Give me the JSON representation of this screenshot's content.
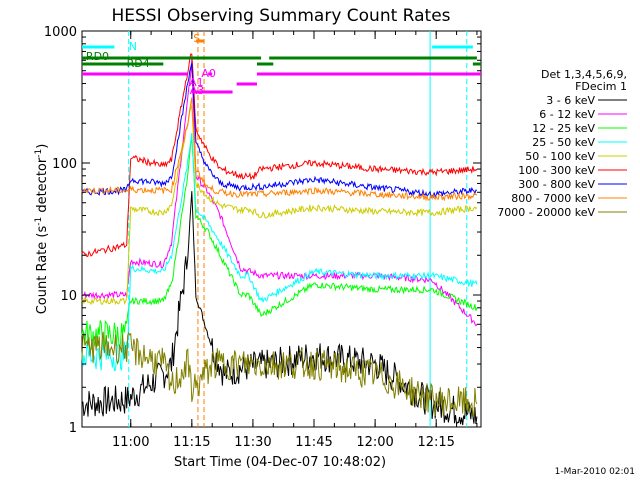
{
  "chart_data": {
    "type": "line",
    "title": "HESSI Observing Summary Count Rates",
    "xlabel": "Start Time (04-Dec-07 10:48:02)",
    "ylabel_prefix": "Count Rate (s",
    "ylabel_sup1": "-1",
    "ylabel_mid": " detector",
    "ylabel_sup2": "-1",
    "ylabel_suffix": ")",
    "y_scale": "log",
    "ylim": [
      1,
      1000
    ],
    "xlim": [
      "10:48:02",
      "12:26"
    ],
    "x_ticks": [
      "11:00",
      "11:15",
      "11:30",
      "11:45",
      "12:00",
      "12:15"
    ],
    "y_ticks": [
      "1",
      "10",
      "100",
      "1000"
    ],
    "legend_header": [
      "Det 1,3,4,5,6,9,",
      "FDecim 1"
    ],
    "footer_date": "1-Mar-2010 02:01",
    "series": [
      {
        "name": "3 - 6 keV",
        "color": "#000000",
        "x": [
          "10:48",
          "10:59",
          "11:08",
          "11:10",
          "11:14",
          "11:15",
          "11:16",
          "11:20",
          "11:23",
          "11:27",
          "11:35",
          "11:45",
          "12:00",
          "12:14",
          "12:25"
        ],
        "y": [
          1.5,
          1.6,
          2.5,
          3.0,
          20,
          60,
          10,
          4,
          2.5,
          2.8,
          3.0,
          3.5,
          3.0,
          1.5,
          1.2
        ]
      },
      {
        "name": "6 - 12 keV",
        "color": "#ff00ff",
        "x": [
          "10:48",
          "10:59",
          "11:00",
          "11:08",
          "11:10",
          "11:14",
          "11:15",
          "11:16",
          "11:19",
          "11:22",
          "11:27",
          "11:32",
          "11:45",
          "12:00",
          "12:14",
          "12:25"
        ],
        "y": [
          10,
          10,
          18,
          17,
          25,
          300,
          600,
          80,
          60,
          40,
          16,
          14,
          14,
          14,
          13,
          6
        ]
      },
      {
        "name": "12 - 25 keV",
        "color": "#00ff00",
        "x": [
          "10:48",
          "10:59",
          "11:00",
          "11:08",
          "11:10",
          "11:14",
          "11:15",
          "11:16",
          "11:19",
          "11:22",
          "11:27",
          "11:29",
          "11:32",
          "11:45",
          "12:00",
          "12:14",
          "12:25"
        ],
        "y": [
          5,
          5,
          9,
          9,
          12,
          80,
          160,
          40,
          30,
          20,
          10,
          10,
          7,
          12,
          11,
          11,
          8
        ]
      },
      {
        "name": "25 - 50 keV",
        "color": "#00ffff",
        "x": [
          "10:48",
          "10:59",
          "11:00",
          "11:08",
          "11:10",
          "11:14",
          "11:15",
          "11:16",
          "11:19",
          "11:22",
          "11:27",
          "11:29",
          "11:32",
          "11:45",
          "12:00",
          "12:14",
          "12:25"
        ],
        "y": [
          3.5,
          3.5,
          16,
          15,
          20,
          100,
          170,
          45,
          35,
          25,
          14,
          14,
          9,
          15,
          14,
          14,
          12
        ]
      },
      {
        "name": "50 - 100 keV",
        "color": "#cccc00",
        "x": [
          "10:48",
          "10:59",
          "11:00",
          "11:08",
          "11:10",
          "11:14",
          "11:15",
          "11:16",
          "11:19",
          "11:22",
          "11:27",
          "11:29",
          "11:32",
          "11:45",
          "12:00",
          "12:14",
          "12:25"
        ],
        "y": [
          9,
          9,
          45,
          42,
          48,
          200,
          280,
          70,
          55,
          48,
          44,
          45,
          40,
          46,
          43,
          42,
          46
        ]
      },
      {
        "name": "100 - 300 keV",
        "color": "#ff0000",
        "x": [
          "10:48",
          "10:59",
          "11:00",
          "11:08",
          "11:10",
          "11:14",
          "11:15",
          "11:16",
          "11:19",
          "11:22",
          "11:27",
          "11:30",
          "11:32",
          "11:45",
          "12:00",
          "12:14",
          "12:25"
        ],
        "y": [
          20,
          24,
          110,
          95,
          105,
          500,
          700,
          180,
          120,
          90,
          80,
          78,
          90,
          100,
          90,
          85,
          90
        ]
      },
      {
        "name": "300 - 800 keV",
        "color": "#0000ff",
        "x": [
          "10:48",
          "10:59",
          "11:00",
          "11:08",
          "11:10",
          "11:14",
          "11:15",
          "11:16",
          "11:19",
          "11:22",
          "11:27",
          "11:30",
          "11:32",
          "11:45",
          "12:00",
          "12:14",
          "12:25"
        ],
        "y": [
          60,
          62,
          75,
          70,
          78,
          400,
          600,
          140,
          90,
          70,
          65,
          66,
          66,
          75,
          65,
          58,
          62
        ]
      },
      {
        "name": "800 - 7000 keV",
        "color": "#ff8000",
        "x": [
          "10:48",
          "10:59",
          "11:00",
          "11:08",
          "11:10",
          "11:14",
          "11:15",
          "11:16",
          "11:19",
          "11:22",
          "11:27",
          "11:30",
          "11:32",
          "11:45",
          "12:00",
          "12:14",
          "12:25"
        ],
        "y": [
          62,
          62,
          63,
          62,
          63,
          200,
          300,
          90,
          65,
          60,
          58,
          58,
          58,
          62,
          58,
          55,
          57
        ]
      },
      {
        "name": "7000 - 20000 keV",
        "color": "#808000",
        "x": [
          "10:48",
          "10:59",
          "11:08",
          "11:10",
          "11:14",
          "11:15",
          "11:16",
          "11:20",
          "11:27",
          "11:35",
          "11:45",
          "12:00",
          "12:14",
          "12:25"
        ],
        "y": [
          4,
          4,
          3,
          2,
          3,
          2,
          2,
          3,
          3,
          3,
          3,
          2.5,
          1.6,
          1.5
        ]
      }
    ],
    "annotations": [
      "S",
      "N",
      "RD0",
      "RD4",
      "A1",
      "A3",
      "A0"
    ]
  }
}
